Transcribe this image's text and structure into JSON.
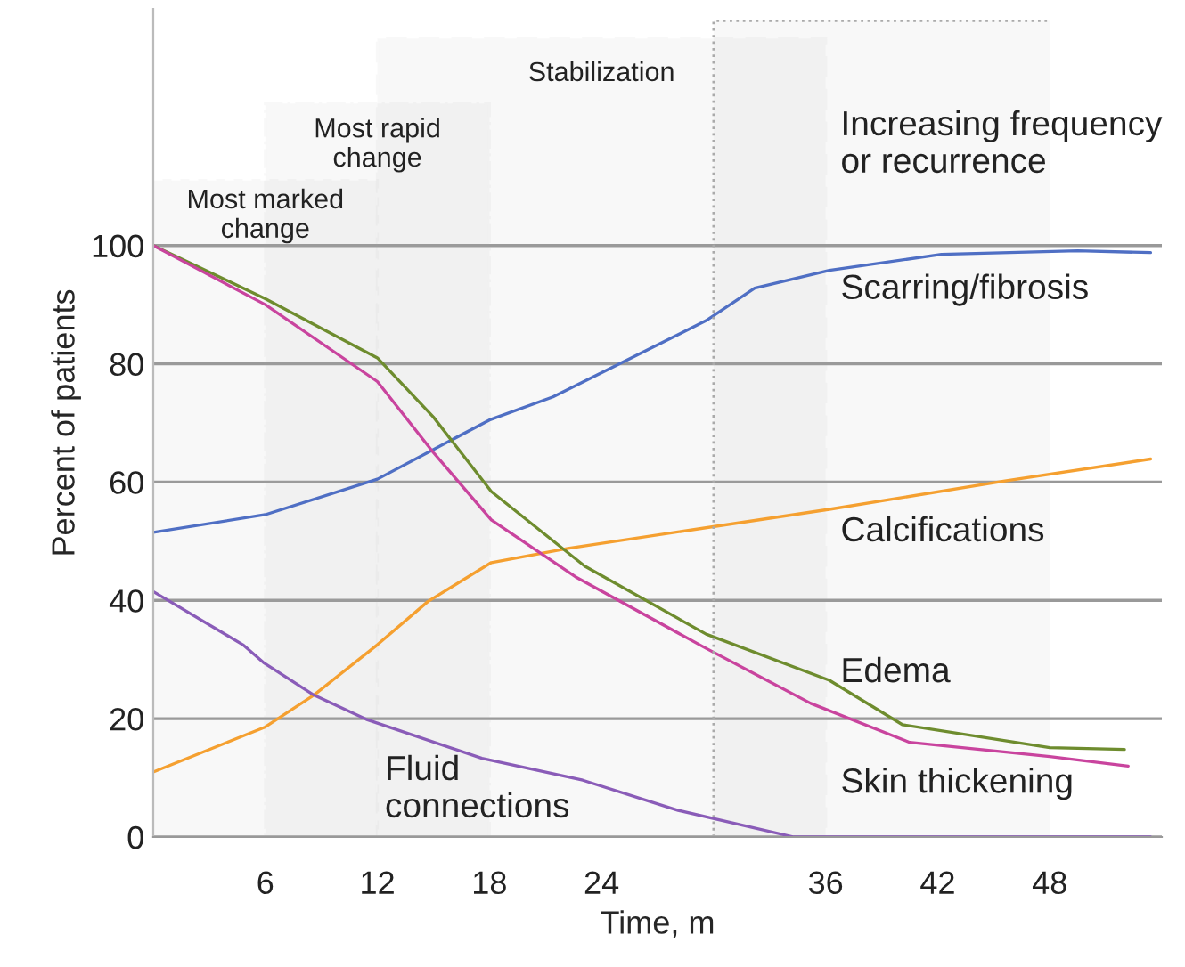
{
  "chart_data": {
    "type": "line",
    "xlabel": "Time, m",
    "ylabel": "Percent of patients",
    "xlim": [
      0,
      54
    ],
    "ylim": [
      0,
      140
    ],
    "xticks": [
      6,
      12,
      18,
      24,
      36,
      42,
      48
    ],
    "yticks": [
      0,
      20,
      40,
      60,
      80,
      100
    ],
    "grid": "y",
    "legend": false,
    "marker": "none",
    "line_style": "solid",
    "series": [
      {
        "name": "Scarring/fibrosis",
        "color": "#4f6fc4",
        "x": [
          0,
          6,
          12,
          18,
          21.4,
          27.7,
          29.6,
          32.2,
          36.2,
          42.2,
          49.5,
          53.4
        ],
        "values": [
          51.5,
          54.5,
          60.5,
          70.5,
          74.4,
          84.3,
          87.3,
          92.8,
          95.8,
          98.5,
          99.1,
          98.8
        ]
      },
      {
        "name": "Calcifications",
        "color": "#f5a030",
        "x": [
          0,
          6,
          8.6,
          12,
          14.7,
          18.1,
          22.2,
          36.2,
          45.6,
          53.4
        ],
        "values": [
          11,
          18.6,
          24,
          32.5,
          39.8,
          46.4,
          48.8,
          55.4,
          60.2,
          63.9
        ]
      },
      {
        "name": "Edema",
        "color": "#6e8c2e",
        "x": [
          0,
          6,
          12,
          15,
          18.1,
          23.1,
          29.6,
          36.2,
          40.1,
          48,
          52
        ],
        "values": [
          100,
          91,
          81,
          71,
          58.4,
          45.8,
          34.3,
          26.5,
          19,
          15.1,
          14.8
        ]
      },
      {
        "name": "Skin thickening",
        "color": "#c9449e",
        "x": [
          0,
          6,
          12,
          15,
          18.1,
          22.6,
          29.6,
          35.2,
          40.5,
          48,
          52.2
        ],
        "values": [
          100,
          90,
          77,
          65,
          53.6,
          44,
          31.9,
          22.6,
          16,
          13.6,
          12
        ]
      },
      {
        "name": "Fluid\nconnections",
        "color": "#8a5cb8",
        "x": [
          0,
          4.8,
          5.9,
          8.6,
          11.4,
          17.6,
          23,
          28.1,
          34.3,
          53.4
        ],
        "values": [
          41.5,
          32.5,
          29.5,
          24,
          19.9,
          13.3,
          9.6,
          4.5,
          0,
          0
        ]
      }
    ],
    "bands": [
      {
        "axis": "x",
        "from": 0,
        "to": 12,
        "label": "Most marked\nchange",
        "color": "#aaaaaa"
      },
      {
        "axis": "x",
        "from": 6,
        "to": 18,
        "label": "Most rapid\nchange",
        "color": "#aaaaaa"
      },
      {
        "axis": "x",
        "from": 12,
        "to": 36,
        "label": "Stabilization",
        "color": "#aaaaaa"
      },
      {
        "axis": "x",
        "from": 30,
        "to": 48,
        "label": "Increasing frequency\nor recurrence",
        "color": "#aaaaaa"
      }
    ]
  }
}
